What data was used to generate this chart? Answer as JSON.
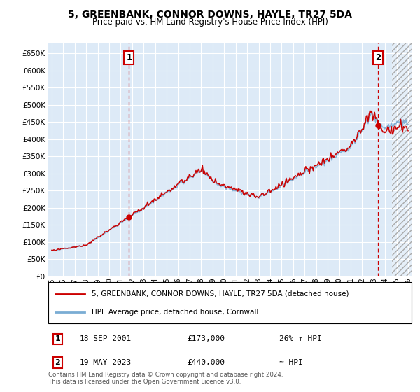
{
  "title": "5, GREENBANK, CONNOR DOWNS, HAYLE, TR27 5DA",
  "subtitle": "Price paid vs. HM Land Registry's House Price Index (HPI)",
  "legend_line1": "5, GREENBANK, CONNOR DOWNS, HAYLE, TR27 5DA (detached house)",
  "legend_line2": "HPI: Average price, detached house, Cornwall",
  "annotation1_label": "1",
  "annotation1_date": "18-SEP-2001",
  "annotation1_price": "£173,000",
  "annotation1_hpi": "26% ↑ HPI",
  "annotation2_label": "2",
  "annotation2_date": "19-MAY-2023",
  "annotation2_price": "£440,000",
  "annotation2_hpi": "≈ HPI",
  "footnote": "Contains HM Land Registry data © Crown copyright and database right 2024.\nThis data is licensed under the Open Government Licence v3.0.",
  "property_color": "#cc0000",
  "hpi_color": "#7aadd4",
  "plot_bg": "#ddeaf7",
  "purchase1_x": 2001.72,
  "purchase1_y": 173000,
  "purchase2_x": 2023.38,
  "purchase2_y": 440000,
  "ylim": [
    0,
    680000
  ],
  "xlim": [
    1994.7,
    2026.3
  ],
  "future_start": 2024.58,
  "yticks": [
    0,
    50000,
    100000,
    150000,
    200000,
    250000,
    300000,
    350000,
    400000,
    450000,
    500000,
    550000,
    600000,
    650000
  ],
  "xticks": [
    1995,
    1996,
    1997,
    1998,
    1999,
    2000,
    2001,
    2002,
    2003,
    2004,
    2005,
    2006,
    2007,
    2008,
    2009,
    2010,
    2011,
    2012,
    2013,
    2014,
    2015,
    2016,
    2017,
    2018,
    2019,
    2020,
    2021,
    2022,
    2023,
    2024,
    2025,
    2026
  ]
}
